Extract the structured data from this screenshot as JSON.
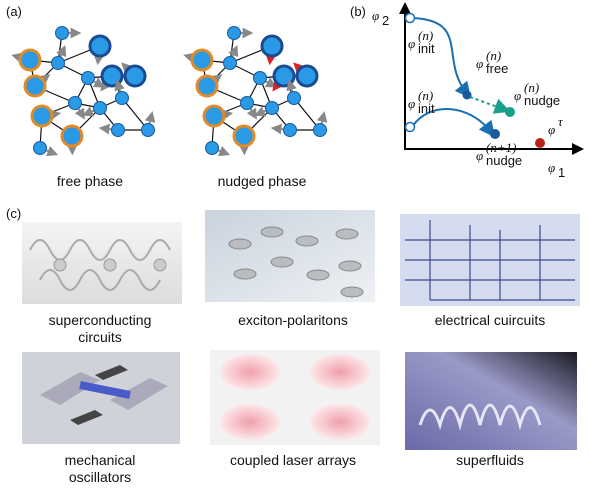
{
  "panel_a": {
    "label": "(a)",
    "captions": [
      "free phase",
      "nudged phase"
    ]
  },
  "panel_b": {
    "label": "(b)",
    "axis_y": {
      "base": "φ",
      "sub": "2"
    },
    "axis_x": {
      "base": "φ",
      "sub": "1"
    },
    "points": [
      {
        "base": "φ",
        "sub": "init",
        "sup": "(n)"
      },
      {
        "base": "φ",
        "sub": "free",
        "sup": "(n)"
      },
      {
        "base": "φ",
        "sub": "nudge",
        "sup": "(n)"
      },
      {
        "base": "φ",
        "sub": "init",
        "sup": "(n)"
      },
      {
        "base": "φ",
        "sub": "nudge",
        "sup": "(n+1)"
      },
      {
        "base": "φ",
        "sup": "τ"
      }
    ]
  },
  "panel_c": {
    "label": "(c)",
    "items": [
      {
        "caption": [
          "superconducting",
          "circuits"
        ]
      },
      {
        "caption": [
          "exciton-polaritons"
        ]
      },
      {
        "caption": [
          "electrical cuircuits"
        ]
      },
      {
        "caption": [
          "mechanical",
          "oscillators"
        ]
      },
      {
        "caption": [
          "coupled laser arrays"
        ]
      },
      {
        "caption": [
          "superfluids"
        ]
      }
    ]
  }
}
